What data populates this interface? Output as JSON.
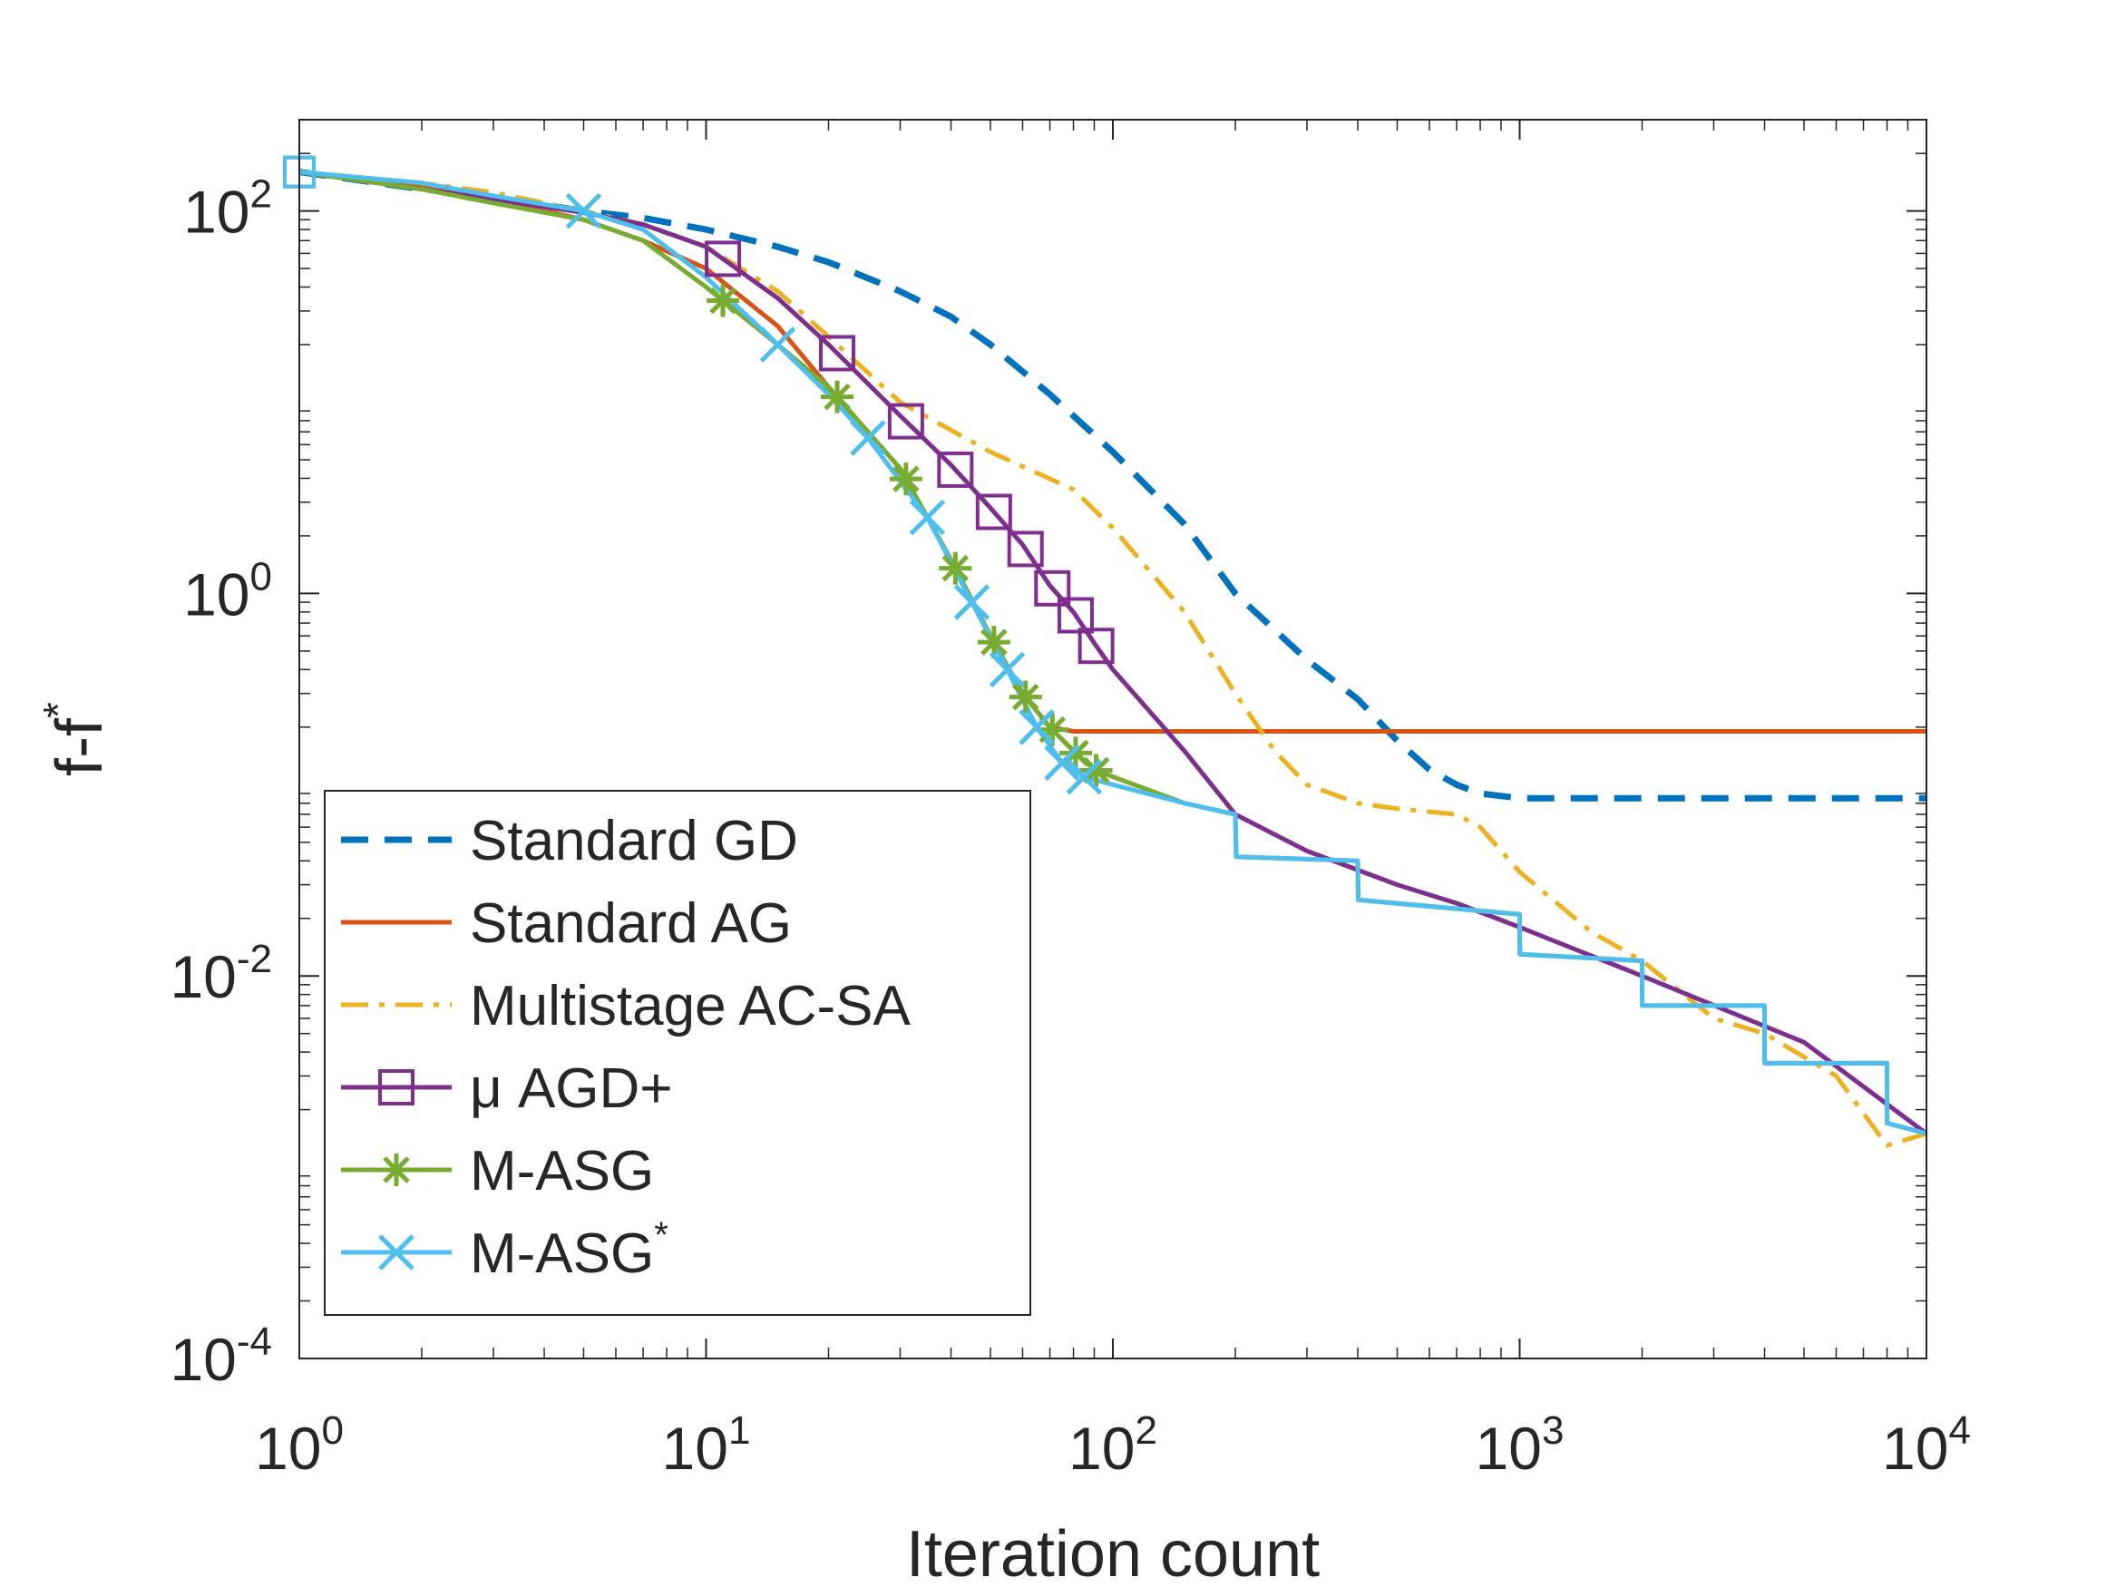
{
  "chart_data": {
    "type": "line",
    "xscale": "log",
    "yscale": "log",
    "xlim": [
      1,
      10000
    ],
    "ylim": [
      0.0001,
      300
    ],
    "xlabel": "Iteration count",
    "ylabel": {
      "base": "f-f",
      "sup": "*"
    },
    "x_ticks": [
      {
        "value": 1,
        "base": "10",
        "exp": "0"
      },
      {
        "value": 10,
        "base": "10",
        "exp": "1"
      },
      {
        "value": 100,
        "base": "10",
        "exp": "2"
      },
      {
        "value": 1000,
        "base": "10",
        "exp": "3"
      },
      {
        "value": 10000,
        "base": "10",
        "exp": "4"
      }
    ],
    "y_ticks": [
      {
        "value": 0.0001,
        "base": "10",
        "exp": "-4"
      },
      {
        "value": 0.01,
        "base": "10",
        "exp": "-2"
      },
      {
        "value": 1,
        "base": "10",
        "exp": "0"
      },
      {
        "value": 100,
        "base": "10",
        "exp": "2"
      }
    ],
    "legend_position": "bottom-left",
    "series": [
      {
        "name": "Standard GD",
        "legend_label": "Standard GD",
        "legend_sup": "",
        "color": "#0072BD",
        "dash": "dashed",
        "marker": "none",
        "x": [
          1,
          2,
          3,
          5,
          7,
          10,
          15,
          20,
          30,
          40,
          50,
          70,
          100,
          150,
          200,
          300,
          400,
          500,
          600,
          700,
          800,
          1000,
          2000,
          5000,
          10000
        ],
        "y": [
          160,
          130,
          118,
          100,
          92,
          80,
          65,
          54,
          38,
          28,
          20,
          11,
          5.5,
          2.3,
          1.0,
          0.45,
          0.28,
          0.17,
          0.12,
          0.1,
          0.09,
          0.085,
          0.085,
          0.085,
          0.085
        ]
      },
      {
        "name": "Standard AG",
        "legend_label": "Standard AG",
        "legend_sup": "",
        "color": "#D95319",
        "dash": "solid",
        "marker": "none",
        "x": [
          1,
          2,
          3,
          5,
          7,
          10,
          15,
          20,
          30,
          40,
          50,
          60,
          70,
          80,
          100,
          200,
          1000,
          10000
        ],
        "y": [
          160,
          135,
          115,
          90,
          70,
          50,
          25,
          12,
          4.5,
          1.5,
          0.6,
          0.3,
          0.2,
          0.19,
          0.19,
          0.19,
          0.19,
          0.19
        ]
      },
      {
        "name": "Multistage AC-SA",
        "legend_label": "Multistage AC-SA",
        "legend_sup": "",
        "color": "#EDB120",
        "dash": "dashdot",
        "marker": "none",
        "x": [
          1,
          2,
          3,
          5,
          7,
          10,
          15,
          20,
          30,
          50,
          80,
          100,
          150,
          200,
          250,
          300,
          400,
          500,
          700,
          800,
          1000,
          1500,
          2000,
          3000,
          4000,
          6000,
          8000,
          10000
        ],
        "y": [
          160,
          140,
          125,
          100,
          85,
          65,
          38,
          22,
          10,
          5.5,
          3.5,
          2.2,
          0.8,
          0.3,
          0.15,
          0.1,
          0.08,
          0.075,
          0.07,
          0.06,
          0.035,
          0.017,
          0.012,
          0.006,
          0.005,
          0.003,
          0.0013,
          0.0015
        ]
      },
      {
        "name": "μ AGD+",
        "legend_label": "μ AGD+",
        "legend_sup": "",
        "color": "#7E2F8E",
        "dash": "solid",
        "marker": "square",
        "x": [
          1,
          2,
          3,
          5,
          7,
          10,
          15,
          20,
          30,
          40,
          50,
          60,
          70,
          80,
          90,
          100,
          150,
          200,
          300,
          500,
          700,
          1000,
          2000,
          5000,
          10000
        ],
        "y": [
          160,
          130,
          115,
          98,
          85,
          65,
          35,
          20,
          8.5,
          4.7,
          2.8,
          1.8,
          1.1,
          0.8,
          0.55,
          0.4,
          0.15,
          0.07,
          0.045,
          0.03,
          0.024,
          0.018,
          0.01,
          0.0045,
          0.0015
        ],
        "marker_x": [
          11,
          21,
          31,
          41,
          51,
          61,
          71,
          81,
          91
        ]
      },
      {
        "name": "M-ASG",
        "legend_label": "M-ASG",
        "legend_sup": "",
        "color": "#77AC30",
        "dash": "solid",
        "marker": "asterisk",
        "x": [
          1,
          2,
          3,
          5,
          7,
          10,
          15,
          20,
          30,
          40,
          50,
          60,
          70,
          80,
          90,
          100,
          150,
          200,
          201,
          400,
          401,
          1000,
          1001,
          2000,
          2001,
          4000,
          4001,
          8000,
          8001,
          10000
        ],
        "y": [
          160,
          130,
          110,
          90,
          70,
          40,
          20,
          12,
          4.5,
          1.5,
          0.6,
          0.3,
          0.2,
          0.15,
          0.12,
          0.11,
          0.08,
          0.07,
          0.042,
          0.04,
          0.025,
          0.021,
          0.013,
          0.012,
          0.007,
          0.007,
          0.0035,
          0.0035,
          0.0017,
          0.0015
        ],
        "marker_x": [
          11,
          21,
          31,
          41,
          51,
          61,
          71,
          81,
          91
        ]
      },
      {
        "name": "M-ASG*",
        "legend_label": "M-ASG",
        "legend_sup": "*",
        "color": "#4DBEEE",
        "dash": "solid",
        "marker": "cross",
        "x": [
          1,
          2,
          3,
          5,
          7,
          10,
          15,
          20,
          25,
          35,
          45,
          55,
          65,
          75,
          85,
          100,
          150,
          200,
          201,
          400,
          401,
          1000,
          1001,
          2000,
          2001,
          4000,
          4001,
          8000,
          8001,
          10000
        ],
        "y": [
          160,
          140,
          120,
          100,
          80,
          45,
          20,
          11,
          6.5,
          2.5,
          0.9,
          0.4,
          0.2,
          0.13,
          0.11,
          0.1,
          0.08,
          0.07,
          0.042,
          0.04,
          0.025,
          0.021,
          0.013,
          0.012,
          0.007,
          0.007,
          0.0035,
          0.0035,
          0.0017,
          0.0015
        ],
        "marker_x": [
          5,
          15,
          25,
          35,
          45,
          55,
          65,
          75,
          85
        ]
      }
    ]
  }
}
